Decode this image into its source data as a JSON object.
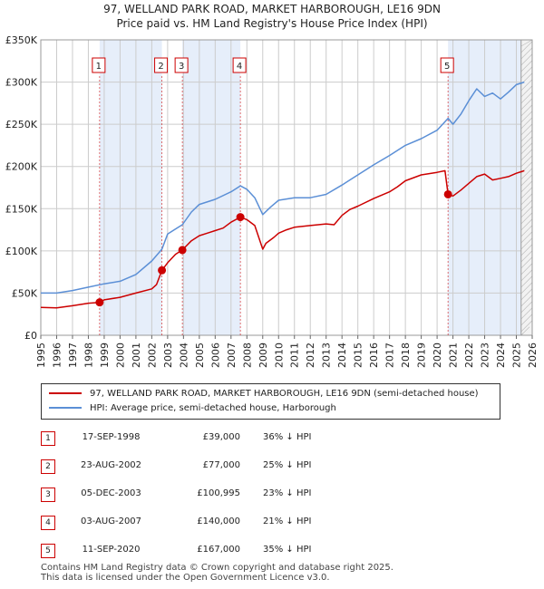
{
  "title_line1": "97, WELLAND PARK ROAD, MARKET HARBOROUGH, LE16 9DN",
  "title_line2": "Price paid vs. HM Land Registry's House Price Index (HPI)",
  "legend": {
    "property": "97, WELLAND PARK ROAD, MARKET HARBOROUGH, LE16 9DN (semi-detached house)",
    "hpi": "HPI: Average price, semi-detached house, Harborough"
  },
  "colors": {
    "property": "#cc0000",
    "hpi": "#5b8fd6",
    "band": "#e6eefa",
    "grid": "#cccccc"
  },
  "sales": [
    {
      "num": "1",
      "date": "17-SEP-1998",
      "price": "£39,000",
      "hpi_rel": "36% ↓ HPI"
    },
    {
      "num": "2",
      "date": "23-AUG-2002",
      "price": "£77,000",
      "hpi_rel": "25% ↓ HPI"
    },
    {
      "num": "3",
      "date": "05-DEC-2003",
      "price": "£100,995",
      "hpi_rel": "23% ↓ HPI"
    },
    {
      "num": "4",
      "date": "03-AUG-2007",
      "price": "£140,000",
      "hpi_rel": "21% ↓ HPI"
    },
    {
      "num": "5",
      "date": "11-SEP-2020",
      "price": "£167,000",
      "hpi_rel": "35% ↓ HPI"
    }
  ],
  "footer_line1": "Contains HM Land Registry data © Crown copyright and database right 2025.",
  "footer_line2": "This data is licensed under the Open Government Licence v3.0.",
  "chart_data": {
    "type": "line",
    "title": "97, WELLAND PARK ROAD, MARKET HARBOROUGH, LE16 9DN",
    "subtitle": "Price paid vs. HM Land Registry's House Price Index (HPI)",
    "xlabel": "",
    "ylabel": "",
    "xlim": [
      1995,
      2026
    ],
    "ylim": [
      0,
      350000
    ],
    "x_ticks": [
      1995,
      1996,
      1997,
      1998,
      1999,
      2000,
      2001,
      2002,
      2003,
      2004,
      2005,
      2006,
      2007,
      2008,
      2009,
      2010,
      2011,
      2012,
      2013,
      2014,
      2015,
      2016,
      2017,
      2018,
      2019,
      2020,
      2021,
      2022,
      2023,
      2024,
      2025,
      2026
    ],
    "y_ticks": [
      {
        "value": 0,
        "label": "£0"
      },
      {
        "value": 50000,
        "label": "£50K"
      },
      {
        "value": 100000,
        "label": "£100K"
      },
      {
        "value": 150000,
        "label": "£150K"
      },
      {
        "value": 200000,
        "label": "£200K"
      },
      {
        "value": 250000,
        "label": "£250K"
      },
      {
        "value": 300000,
        "label": "£300K"
      },
      {
        "value": 350000,
        "label": "£350K"
      }
    ],
    "grid": true,
    "future_from": 2025.3,
    "shaded_bands": [
      [
        1998.71,
        2002.64
      ],
      [
        2003.93,
        2007.59
      ],
      [
        2020.69,
        2025.3
      ]
    ],
    "markers": [
      {
        "label": "1",
        "x": 1998.71,
        "y": 39000
      },
      {
        "label": "2",
        "x": 2002.64,
        "y": 77000
      },
      {
        "label": "3",
        "x": 2003.93,
        "y": 100995
      },
      {
        "label": "4",
        "x": 2007.59,
        "y": 140000
      },
      {
        "label": "5",
        "x": 2020.69,
        "y": 167000
      }
    ],
    "series": [
      {
        "name": "97, WELLAND PARK ROAD, MARKET HARBOROUGH, LE16 9DN (semi-detached house)",
        "color": "#cc0000",
        "x": [
          1995,
          1996,
          1997,
          1998,
          1998.71,
          1999,
          2000,
          2001,
          2002,
          2002.3,
          2002.64,
          2003,
          2003.5,
          2003.93,
          2004.5,
          2005,
          2005.5,
          2006,
          2006.5,
          2007,
          2007.59,
          2008,
          2008.5,
          2009,
          2009.2,
          2009.7,
          2010,
          2010.5,
          2011,
          2012,
          2013,
          2013.5,
          2014,
          2014.5,
          2015,
          2016,
          2017,
          2017.5,
          2018,
          2019,
          2020,
          2020.5,
          2020.69,
          2021,
          2021.5,
          2022,
          2022.5,
          2023,
          2023.5,
          2024,
          2024.5,
          2025,
          2025.5
        ],
        "y": [
          33000,
          32500,
          35000,
          38000,
          39000,
          42000,
          45000,
          50000,
          55000,
          60000,
          77000,
          86000,
          96000,
          100995,
          112000,
          118000,
          121000,
          124000,
          127000,
          134000,
          140000,
          137000,
          130000,
          102000,
          109000,
          116000,
          121000,
          125000,
          128000,
          130000,
          132000,
          131000,
          142000,
          149000,
          153000,
          162000,
          170000,
          176000,
          183000,
          190000,
          193000,
          195000,
          167000,
          165000,
          172000,
          180000,
          188000,
          191000,
          184000,
          186000,
          188000,
          192000,
          195000
        ]
      },
      {
        "name": "HPI: Average price, semi-detached house, Harborough",
        "color": "#5b8fd6",
        "x": [
          1995,
          1996,
          1997,
          1998,
          1999,
          2000,
          2001,
          2002,
          2002.64,
          2003,
          2003.93,
          2004.5,
          2005,
          2006,
          2007,
          2007.59,
          2008,
          2008.5,
          2009,
          2009.5,
          2010,
          2011,
          2012,
          2013,
          2014,
          2015,
          2016,
          2017,
          2018,
          2019,
          2020,
          2020.69,
          2021,
          2021.5,
          2022,
          2022.5,
          2023,
          2023.5,
          2024,
          2024.5,
          2025,
          2025.5
        ],
        "y": [
          50000,
          50000,
          53000,
          57000,
          61000,
          64000,
          72000,
          88000,
          102000,
          120000,
          131000,
          146000,
          155000,
          161000,
          170000,
          177000,
          173000,
          163000,
          143000,
          152000,
          160000,
          163000,
          163000,
          167000,
          178000,
          190000,
          202000,
          213000,
          225000,
          233000,
          243000,
          257000,
          250000,
          262000,
          278000,
          292000,
          283000,
          287000,
          280000,
          288000,
          297000,
          300000
        ]
      }
    ]
  }
}
